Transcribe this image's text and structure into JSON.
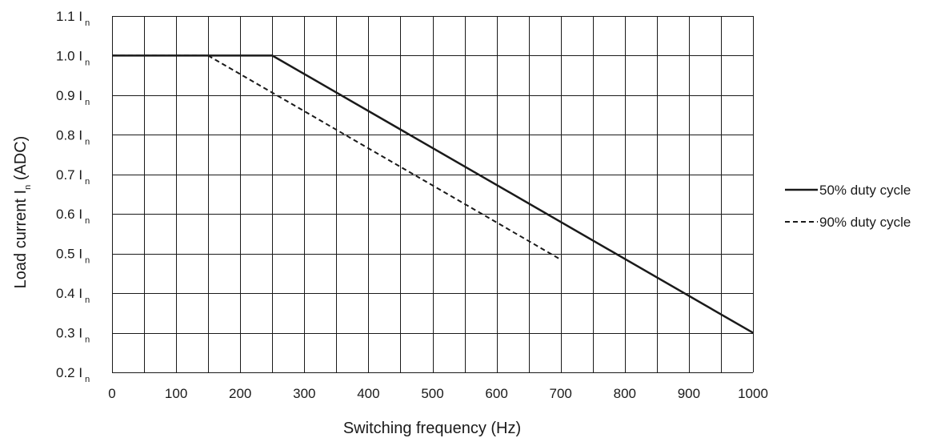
{
  "chart_data": {
    "type": "line",
    "xlabel": "Switching frequency (Hz)",
    "ylabel": {
      "prefix": "Load current I",
      "subscript": "n",
      "suffix": " (ADC)"
    },
    "xlim": [
      0,
      1000
    ],
    "ylim": [
      0.2,
      1.1
    ],
    "x_ticks": [
      0,
      100,
      200,
      300,
      400,
      500,
      600,
      700,
      800,
      900,
      1000
    ],
    "x_grid_step": 50,
    "y_ticks": [
      {
        "value": 0.2,
        "label": "0.2 I",
        "sub": "n"
      },
      {
        "value": 0.3,
        "label": "0.3 I",
        "sub": "n"
      },
      {
        "value": 0.4,
        "label": "0.4 I",
        "sub": "n"
      },
      {
        "value": 0.5,
        "label": "0.5 I",
        "sub": "n"
      },
      {
        "value": 0.6,
        "label": "0.6 I",
        "sub": "n"
      },
      {
        "value": 0.7,
        "label": "0.7 I",
        "sub": "n"
      },
      {
        "value": 0.8,
        "label": "0.8 I",
        "sub": "n"
      },
      {
        "value": 0.9,
        "label": "0.9 I",
        "sub": "n"
      },
      {
        "value": 1.0,
        "label": "1.0 I",
        "sub": "n"
      },
      {
        "value": 1.1,
        "label": "1.1 I",
        "sub": "n"
      }
    ],
    "grid": true,
    "legend_position": "right",
    "series": [
      {
        "name": "50% duty cycle",
        "style": "solid",
        "color": "#1a1a1a",
        "points": [
          [
            0,
            1.0
          ],
          [
            250,
            1.0
          ],
          [
            1000,
            0.3
          ]
        ]
      },
      {
        "name": "90% duty cycle",
        "style": "dashed",
        "color": "#1a1a1a",
        "points": [
          [
            0,
            1.0
          ],
          [
            150,
            1.0
          ],
          [
            700,
            0.485
          ]
        ]
      }
    ]
  }
}
